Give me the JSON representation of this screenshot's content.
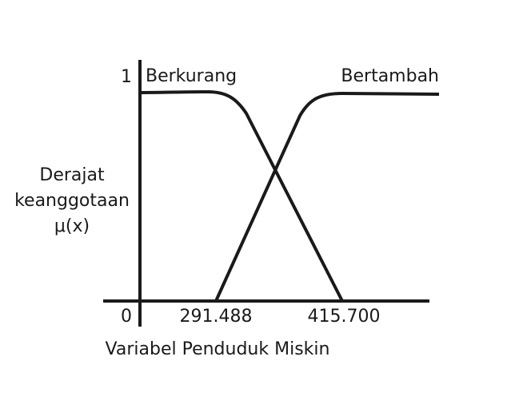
{
  "chart_data": {
    "type": "line",
    "title": "",
    "xlabel": "Variabel Penduduk Miskin",
    "ylabel_lines": [
      "Derajat",
      "keanggotaan",
      "μ(x)"
    ],
    "y_ticks": [
      "1",
      "0"
    ],
    "x_ticks": [
      "291.488",
      "415.700"
    ],
    "ylim": [
      0,
      1
    ],
    "series": [
      {
        "name": "Berkurang",
        "points": [
          [
            "min",
            1
          ],
          [
            "291.488",
            1
          ],
          [
            "415.700",
            0
          ]
        ]
      },
      {
        "name": "Bertambah",
        "points": [
          [
            "291.488",
            0
          ],
          [
            "415.700",
            1
          ],
          [
            "max",
            1
          ]
        ]
      }
    ]
  }
}
